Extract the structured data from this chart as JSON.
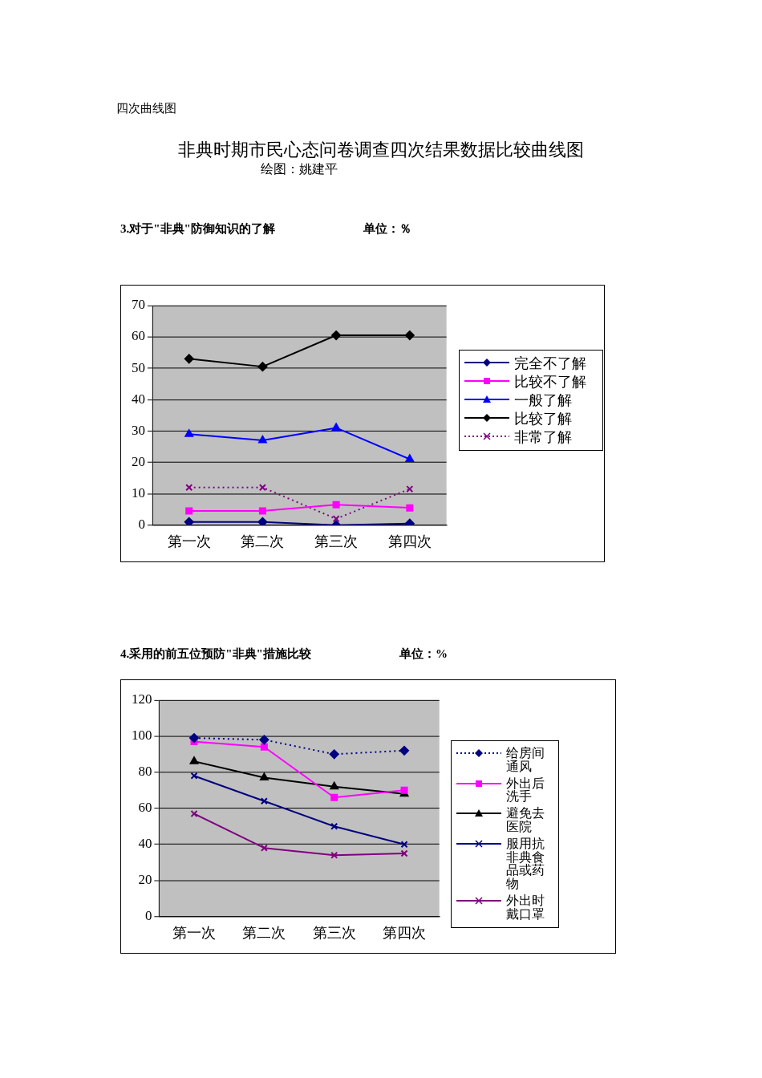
{
  "chart_data": [
    {
      "type": "line",
      "title": "3.对于\"非典\"防御知识的了解",
      "subtitle": "单位：％",
      "annotations": [
        "四次曲线图",
        "非典时期市民心态问卷调查四次结果数据比较曲线图",
        "绘图：姚建平"
      ],
      "categories": [
        "第一次",
        "第二次",
        "第三次",
        "第四次"
      ],
      "series": [
        {
          "name": "完全不了解",
          "color": "#000080",
          "marker": "diamond",
          "values": [
            1,
            1,
            0,
            0.5
          ]
        },
        {
          "name": "比较不了解",
          "color": "#ff00ff",
          "marker": "square",
          "values": [
            4.5,
            4.5,
            6.5,
            5.5
          ]
        },
        {
          "name": "一般了解",
          "color": "#0000ff",
          "marker": "triangle",
          "values": [
            29,
            27,
            31,
            21
          ]
        },
        {
          "name": "比较了解",
          "color": "#000000",
          "marker": "diamond",
          "values": [
            53,
            50.5,
            60.5,
            60.5
          ]
        },
        {
          "name": "非常了解",
          "color": "#800080",
          "marker": "cross",
          "line_style": "dotted",
          "values": [
            12,
            12,
            2,
            11.5
          ]
        }
      ],
      "ylim": [
        0,
        70
      ],
      "yticks": [
        0,
        10,
        20,
        30,
        40,
        50,
        60,
        70
      ],
      "grid": "y",
      "legend": "right"
    },
    {
      "type": "line",
      "title": "4.采用的前五位预防\"非典\"措施比较",
      "subtitle": "单位：%",
      "categories": [
        "第一次",
        "第二次",
        "第三次",
        "第四次"
      ],
      "series": [
        {
          "name": "给房间通风",
          "color": "#000080",
          "marker": "diamond",
          "line_style": "dotted",
          "values": [
            99,
            98,
            90,
            92
          ]
        },
        {
          "name": "外出后洗手",
          "color": "#ff00ff",
          "marker": "square",
          "values": [
            97,
            94,
            66,
            70
          ]
        },
        {
          "name": "避免去医院",
          "color": "#000000",
          "marker": "triangle",
          "values": [
            86,
            77,
            72,
            68
          ]
        },
        {
          "name": "服用抗非典食品或药物",
          "color": "#000080",
          "marker": "cross",
          "values": [
            78,
            64,
            50,
            40
          ]
        },
        {
          "name": "外出时戴口罩",
          "color": "#800080",
          "marker": "cross",
          "values": [
            57,
            38,
            34,
            35
          ]
        }
      ],
      "ylim": [
        0,
        120
      ],
      "yticks": [
        0,
        20,
        40,
        60,
        80,
        100,
        120
      ],
      "grid": "y",
      "legend": "right"
    }
  ]
}
